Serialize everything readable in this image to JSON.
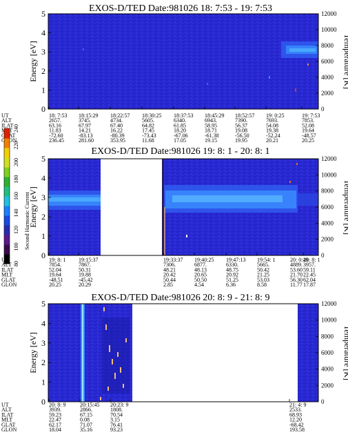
{
  "chart_data": [
    {
      "type": "heatmap",
      "title": "EXOS-D/TED   Date:981026  18: 7:53 - 19: 7:53",
      "ylabel": "Energy [eV]",
      "ylabel_right": "Temperature [K]",
      "ylim": [
        0,
        5
      ],
      "ylim_right": [
        0,
        12000
      ],
      "yticks": [
        "0",
        "1",
        "2",
        "3",
        "4",
        "5"
      ],
      "yticks_right": [
        "0",
        "2000",
        "4000",
        "6000",
        "8000",
        "10000",
        "12000"
      ],
      "x_labels": [
        "18: 7:53",
        "18:15:29",
        "18:22:57",
        "18:30:25",
        "18:37:53",
        "18:45:29",
        "18:52:57",
        "19: 0:25",
        "19: 7:53"
      ],
      "table": [
        {
          "name": "UT",
          "values": [
            "18: 7:53",
            "18:15:29",
            "18:22:57",
            "18:30:25",
            "18:37:53",
            "18:45:29",
            "18:52:57",
            "19: 0:25",
            "19: 7:53"
          ]
        },
        {
          "name": "ALT",
          "values": [
            "2657.",
            "3745.",
            "4734.",
            "5605.",
            "6340.",
            "6943.",
            "7390.",
            "7693.",
            "7853."
          ]
        },
        {
          "name": "ILAT",
          "values": [
            "63.16",
            "67.97",
            "67.40",
            "64.82",
            "61.85",
            "58.95",
            "56.37",
            "54.08",
            "52.08"
          ]
        },
        {
          "name": "MLT",
          "values": [
            "11.83",
            "14.21",
            "16.22",
            "17.45",
            "18.20",
            "18.71",
            "19.08",
            "19.38",
            "19.64"
          ]
        },
        {
          "name": "GLAT",
          "values": [
            "-72.60",
            "-83.13",
            "-80.39",
            "-73.43",
            "-67.06",
            "-61.38",
            "-56.50",
            "-52.24",
            "-48.57"
          ]
        },
        {
          "name": "GLON",
          "values": [
            "236.45",
            "281.60",
            "353.95",
            "11.68",
            "17.05",
            "19.15",
            "19.95",
            "20.21",
            "20.25"
          ]
        }
      ]
    },
    {
      "type": "heatmap",
      "title": "EXOS-D/TED   Date:981026  19: 8: 1 - 20: 8: 1",
      "ylabel": "Energy [eV]",
      "ylabel_right": "Temperature [K]",
      "ylim": [
        0,
        5
      ],
      "ylim_right": [
        0,
        12000
      ],
      "yticks": [
        "0",
        "1",
        "2",
        "3",
        "4",
        "5"
      ],
      "yticks_right": [
        "0",
        "2000",
        "4000",
        "6000",
        "8000",
        "10000",
        "12000"
      ],
      "x_labels": [
        "19: 8: 1",
        "19:15:37",
        "19:33:37",
        "19:40:25",
        "19:47:13",
        "19:54: 1",
        "20: 0:49",
        "20: 8: 1"
      ],
      "table": [
        {
          "name": "UT",
          "values": [
            "19: 8: 1",
            "19:15:37",
            "19:33:37",
            "19:40:25",
            "19:47:13",
            "19:54: 1",
            "20: 0:49",
            "20: 8: 1"
          ]
        },
        {
          "name": "ALT",
          "values": [
            "7854.",
            "7867.",
            "7306.",
            "6877.",
            "6330.",
            "5665.",
            "4889.",
            "3957."
          ]
        },
        {
          "name": "ILAT",
          "values": [
            "52.04",
            "50.31",
            "48.21",
            "48.13",
            "48.75",
            "50.42",
            "53.60",
            "59.11"
          ]
        },
        {
          "name": "MLT",
          "values": [
            "19.64",
            "19.88",
            "20.42",
            "20.65",
            "20.92",
            "21.25",
            "21.70",
            "22.45"
          ]
        },
        {
          "name": "GLAT",
          "values": [
            "-48.51",
            "-45.42",
            "50.44",
            "50.50",
            "51.25",
            "53.03",
            "56.30",
            "62.04"
          ]
        },
        {
          "name": "GLON",
          "values": [
            "20.25",
            "20.29",
            "2.85",
            "4.54",
            "6.36",
            "8.58",
            "11.77",
            "17.87"
          ]
        }
      ]
    },
    {
      "type": "heatmap",
      "title": "EXOS-D/TED   Date:981026  20: 8: 9 - 21: 8: 9",
      "ylabel": "Energy [eV]",
      "ylabel_right": "Temperature [K]",
      "ylim": [
        0,
        5
      ],
      "ylim_right": [
        0,
        12000
      ],
      "yticks": [
        "0",
        "1",
        "2",
        "3",
        "4",
        "5"
      ],
      "yticks_right": [
        "0",
        "2000",
        "4000",
        "6000",
        "8000",
        "10000",
        "12000"
      ],
      "x_labels": [
        "20: 8: 9",
        "20:15:45",
        "20:23: 9",
        "21: 4: 9"
      ],
      "table": [
        {
          "name": "UT",
          "values": [
            "20: 8: 9",
            "20:15:45",
            "20:23: 9",
            "21: 4: 9"
          ]
        },
        {
          "name": "ALT",
          "values": [
            "3939.",
            "2866.",
            "1808.",
            "2533."
          ]
        },
        {
          "name": "ILAT",
          "values": [
            "59.23",
            "67.15",
            "70.54",
            "68.93"
          ]
        },
        {
          "name": "MLT",
          "values": [
            "22.47",
            "0.08",
            "3.15",
            "12.20"
          ]
        },
        {
          "name": "GLAT",
          "values": [
            "62.17",
            "71.07",
            "76.41",
            "-68.42"
          ]
        },
        {
          "name": "GLON",
          "values": [
            "18.04",
            "35.16",
            "93.23",
            "193.58"
          ]
        }
      ]
    }
  ],
  "colorbar": {
    "label": "Second Harmonic Current",
    "ticks": [
      "80",
      "100",
      "120",
      "140",
      "160",
      "180",
      "200",
      "220",
      "240"
    ],
    "colors": [
      "#000000",
      "#3a0a4a",
      "#5a1a8a",
      "#2a2ab0",
      "#1a4ae0",
      "#1a80ff",
      "#20c0e0",
      "#20c080",
      "#30b030",
      "#80d020",
      "#d0e020",
      "#f0d000",
      "#f08000",
      "#e02000"
    ]
  }
}
